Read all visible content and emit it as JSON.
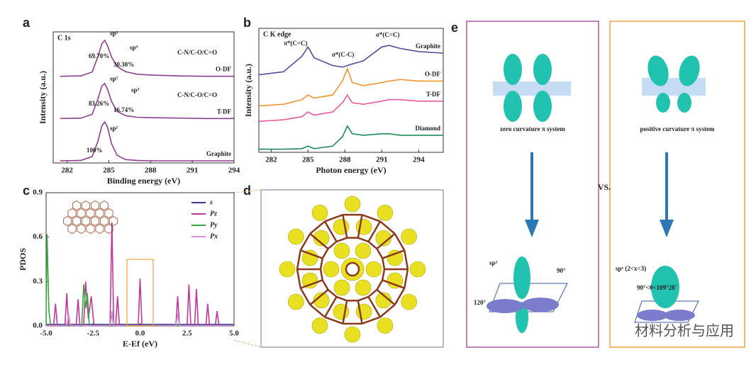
{
  "panel_labels": [
    "a",
    "b",
    "c",
    "d",
    "e"
  ],
  "chart_data": [
    {
      "type": "line",
      "title": "C 1s",
      "xlabel": "Binding energy (eV)",
      "ylabel": "Intensity (a.u.)",
      "xlim": [
        281,
        294
      ],
      "xticks": [
        282,
        285,
        288,
        291,
        294
      ],
      "ylim": [
        0,
        3.1
      ],
      "x": [
        281.5,
        283,
        283.8,
        284.2,
        284.5,
        284.7,
        284.9,
        285.2,
        285.6,
        286.2,
        287,
        288,
        290,
        292,
        294
      ],
      "series": [
        {
          "name": "O-DF",
          "color": "#8e3f8e",
          "values": [
            2.05,
            2.06,
            2.15,
            2.5,
            2.82,
            2.9,
            2.78,
            2.5,
            2.28,
            2.16,
            2.1,
            2.08,
            2.06,
            2.05,
            2.05
          ]
        },
        {
          "name": "T-DF",
          "color": "#8e3f8e",
          "values": [
            1.05,
            1.06,
            1.15,
            1.5,
            1.82,
            1.88,
            1.75,
            1.45,
            1.22,
            1.12,
            1.08,
            1.07,
            1.06,
            1.05,
            1.05
          ]
        },
        {
          "name": "Graphite",
          "color": "#8e3f8e",
          "values": [
            0.05,
            0.06,
            0.15,
            0.5,
            0.88,
            0.97,
            0.85,
            0.45,
            0.18,
            0.08,
            0.06,
            0.05,
            0.05,
            0.05,
            0.05
          ]
        }
      ],
      "annotations": [
        "sp²",
        "sp³",
        "69.70%",
        "30.30%",
        "C-N/C-O/C=O",
        "sp²",
        "sp³",
        "83.26%",
        "16.74%",
        "C-N/C-O/C=O",
        "sp²",
        "100%"
      ]
    },
    {
      "type": "line",
      "title": "C K edge",
      "xlabel": "Photon energy (eV)",
      "ylabel": "Intensity (a.u.)",
      "xlim": [
        281,
        296
      ],
      "xticks": [
        282,
        285,
        288,
        291,
        294
      ],
      "ylim": [
        0,
        4
      ],
      "x": [
        281,
        283,
        284.5,
        285,
        285.5,
        287,
        287.8,
        288.2,
        288.6,
        289.5,
        291,
        291.6,
        292.5,
        294,
        296
      ],
      "series": [
        {
          "name": "Graphite",
          "color": "#5b4a9c",
          "values": [
            2.5,
            2.6,
            3.1,
            3.4,
            3.05,
            2.8,
            2.75,
            2.8,
            2.85,
            2.95,
            3.4,
            3.45,
            3.35,
            3.25,
            3.2
          ]
        },
        {
          "name": "O-DF",
          "color": "#f0952e",
          "values": [
            1.5,
            1.55,
            1.7,
            1.85,
            1.75,
            1.85,
            2.3,
            2.7,
            2.25,
            2.15,
            2.25,
            2.3,
            2.35,
            2.3,
            2.3
          ]
        },
        {
          "name": "T-DF",
          "color": "#e85a9c",
          "values": [
            1.0,
            1.05,
            1.15,
            1.3,
            1.2,
            1.3,
            1.6,
            1.85,
            1.6,
            1.55,
            1.65,
            1.7,
            1.7,
            1.65,
            1.65
          ]
        },
        {
          "name": "Diamond",
          "color": "#1f8a5c",
          "values": [
            0.1,
            0.1,
            0.12,
            0.2,
            0.12,
            0.2,
            0.5,
            0.85,
            0.6,
            0.55,
            0.6,
            0.6,
            0.55,
            0.55,
            0.55
          ]
        }
      ],
      "annotations": [
        "π*(C=C)",
        "σ*(C-C)",
        "σ*(C=C)"
      ]
    },
    {
      "type": "line",
      "xlabel": "E-Ef (eV)",
      "ylabel": "PDOS",
      "xlim": [
        -5,
        5
      ],
      "xticks": [
        {
          "value": -5,
          "label": "-5.0"
        },
        -2.5,
        {
          "value": 0,
          "label": "0.0"
        },
        2.5,
        {
          "value": 5,
          "label": "5.0"
        }
      ],
      "ylim": [
        0,
        0.9
      ],
      "yticks": [
        {
          "value": 0,
          "label": "0.0"
        },
        0.3,
        0.6,
        0.9
      ],
      "legend": "upper right",
      "series": [
        {
          "name": "s",
          "color": "#3a3a8c",
          "x": [
            -5,
            5
          ],
          "values": [
            0.01,
            0.01
          ]
        },
        {
          "name": "Pz",
          "color": "#c2379c",
          "x": [
            -5,
            -4.6,
            -4.5,
            -4.4,
            -4.0,
            -3.9,
            -3.8,
            -3.4,
            -3.3,
            -3.2,
            -3.0,
            -2.9,
            -2.75,
            -2.6,
            -2.45,
            -1.6,
            -1.5,
            -1.4,
            -1.3,
            -1.2,
            -1.1,
            -0.1,
            0,
            0.1,
            1.9,
            2.0,
            2.1,
            2.5,
            2.6,
            2.7,
            2.9,
            3.0,
            3.1,
            3.5,
            3.6,
            3.7,
            4.0,
            4.1,
            4.2,
            5
          ],
          "values": [
            0,
            0,
            0.15,
            0,
            0,
            0.22,
            0,
            0,
            0.18,
            0,
            0,
            0.3,
            0.05,
            0.2,
            0,
            0,
            0.7,
            0,
            0,
            0.2,
            0,
            0,
            0.32,
            0,
            0,
            0.2,
            0,
            0,
            0.28,
            0,
            0,
            0.25,
            0,
            0,
            0.15,
            0,
            0,
            0.1,
            0,
            0
          ]
        },
        {
          "name": "Py",
          "color": "#3aa63a",
          "x": [
            -5,
            -4.95,
            -4.85,
            -4.75,
            -3.1,
            -3.0,
            -2.9,
            -2.8,
            -2.7,
            -1.6,
            -1.5,
            -1.4,
            5
          ],
          "values": [
            0,
            0.62,
            0.1,
            0,
            0,
            0.28,
            0.12,
            0.22,
            0,
            0,
            0.08,
            0,
            0
          ]
        },
        {
          "name": "Px",
          "color": "#d38fd6",
          "x": [
            -5,
            -3.9,
            -3.8,
            -3.7,
            -1.6,
            -1.5,
            -1.4,
            1.9,
            2.0,
            2.1,
            5
          ],
          "values": [
            0,
            0,
            0.08,
            0,
            0,
            0.1,
            0,
            0,
            0.08,
            0,
            0
          ]
        }
      ]
    }
  ],
  "diagram_e": {
    "left_caption": "zero curvature π system",
    "right_caption": "positive curvature π system",
    "vs": "VS.",
    "left_hybrid": "sp²",
    "left_angle_top": "90°",
    "left_angle_side": "120°",
    "right_hybrid": "spˣ (2<x<3)",
    "right_angle": "90°<θ<109°28'"
  },
  "watermark": "材料分析与应用"
}
